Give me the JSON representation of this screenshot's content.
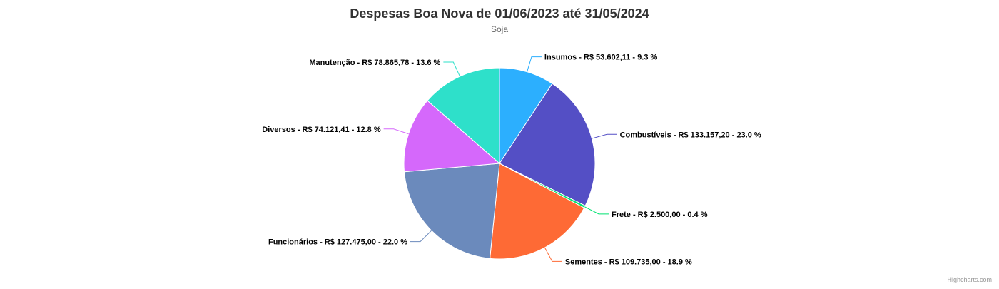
{
  "chart_data": {
    "type": "pie",
    "title": "Despesas Boa Nova de 01/06/2023 até 31/05/2024",
    "subtitle": "Soja",
    "slices": [
      {
        "name": "Insumos",
        "amount": "R$ 53.602,11",
        "value": 9.3,
        "label": "Insumos - R$ 53.602,11 - 9.3 %",
        "color": "#2caffe"
      },
      {
        "name": "Combustíveis",
        "amount": "R$ 133.157,20",
        "value": 23.0,
        "label": "Combustíveis - R$ 133.157,20 - 23.0 %",
        "color": "#544fc5"
      },
      {
        "name": "Frete",
        "amount": "R$ 2.500,00",
        "value": 0.4,
        "label": "Frete - R$ 2.500,00 - 0.4 %",
        "color": "#00e272"
      },
      {
        "name": "Sementes",
        "amount": "R$ 109.735,00",
        "value": 18.9,
        "label": "Sementes - R$ 109.735,00 - 18.9 %",
        "color": "#fe6a35"
      },
      {
        "name": "Funcionários",
        "amount": "R$ 127.475,00",
        "value": 22.0,
        "label": "Funcionários - R$ 127.475,00 - 22.0 %",
        "color": "#6b8abc"
      },
      {
        "name": "Diversos",
        "amount": "R$ 74.121,41",
        "value": 12.8,
        "label": "Diversos - R$ 74.121,41 - 12.8 %",
        "color": "#d568fb"
      },
      {
        "name": "Manutenção",
        "amount": "R$ 78.865,78",
        "value": 13.6,
        "label": "Manutenção - R$ 78.865,78 - 13.6 %",
        "color": "#2ee0ca"
      }
    ]
  },
  "credits": "Highcharts.com"
}
